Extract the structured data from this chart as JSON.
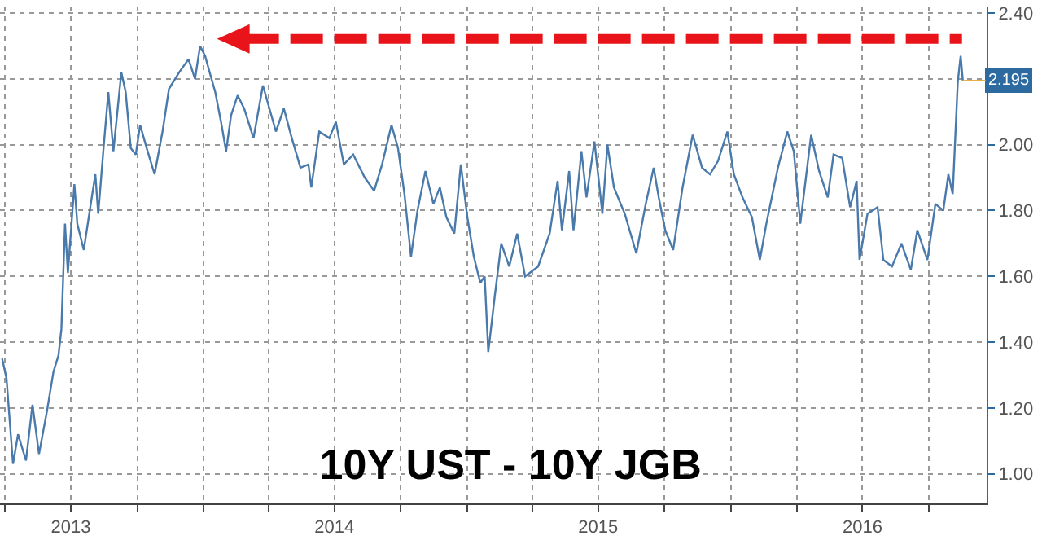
{
  "chart_data": {
    "type": "line",
    "title": "10Y UST - 10Y JGB",
    "x": [
      "2013-03-28",
      "2013-04-03",
      "2013-04-12",
      "2013-04-19",
      "2013-04-30",
      "2013-05-09",
      "2013-05-18",
      "2013-05-29",
      "2013-06-07",
      "2013-06-14",
      "2013-06-18",
      "2013-06-23",
      "2013-06-27",
      "2013-07-06",
      "2013-07-10",
      "2013-07-19",
      "2013-07-28",
      "2013-08-04",
      "2013-08-08",
      "2013-08-15",
      "2013-08-22",
      "2013-08-29",
      "2013-09-09",
      "2013-09-15",
      "2013-09-22",
      "2013-09-29",
      "2013-10-05",
      "2013-10-14",
      "2013-10-25",
      "2013-11-05",
      "2013-11-14",
      "2013-11-28",
      "2013-12-11",
      "2013-12-20",
      "2013-12-27",
      "2014-01-03",
      "2014-01-08",
      "2014-01-17",
      "2014-01-25",
      "2014-02-01",
      "2014-02-08",
      "2014-02-17",
      "2014-02-26",
      "2014-03-11",
      "2014-03-24",
      "2014-04-02",
      "2014-04-11",
      "2014-04-22",
      "2014-05-03",
      "2014-05-15",
      "2014-05-26",
      "2014-05-30",
      "2014-06-10",
      "2014-06-24",
      "2014-07-03",
      "2014-07-14",
      "2014-07-27",
      "2014-08-12",
      "2014-08-25",
      "2014-09-05",
      "2014-09-18",
      "2014-09-27",
      "2014-10-06",
      "2014-10-15",
      "2014-10-24",
      "2014-11-04",
      "2014-11-15",
      "2014-11-24",
      "2014-12-03",
      "2014-12-14",
      "2014-12-23",
      "2015-01-01",
      "2015-01-10",
      "2015-01-19",
      "2015-01-25",
      "2015-01-30",
      "2015-02-08",
      "2015-02-17",
      "2015-02-28",
      "2015-03-11",
      "2015-03-22",
      "2015-04-09",
      "2015-04-25",
      "2015-05-06",
      "2015-05-12",
      "2015-05-22",
      "2015-05-28",
      "2015-06-08",
      "2015-06-15",
      "2015-06-26",
      "2015-07-07",
      "2015-07-14",
      "2015-07-23",
      "2015-08-07",
      "2015-08-23",
      "2015-09-05",
      "2015-09-16",
      "2015-09-23",
      "2015-10-02",
      "2015-10-13",
      "2015-10-26",
      "2015-11-09",
      "2015-11-22",
      "2015-12-03",
      "2015-12-14",
      "2015-12-27",
      "2016-01-05",
      "2016-01-17",
      "2016-01-30",
      "2016-02-10",
      "2016-02-19",
      "2016-03-06",
      "2016-03-19",
      "2016-03-28",
      "2016-04-06",
      "2016-04-21",
      "2016-05-02",
      "2016-05-14",
      "2016-05-22",
      "2016-06-03",
      "2016-06-14",
      "2016-06-23",
      "2016-06-27",
      "2016-07-08",
      "2016-07-22",
      "2016-07-30",
      "2016-08-11",
      "2016-08-24",
      "2016-09-06",
      "2016-09-15",
      "2016-09-29",
      "2016-10-10",
      "2016-10-21",
      "2016-10-28",
      "2016-11-03",
      "2016-11-10",
      "2016-11-14",
      "2016-11-17"
    ],
    "series": [
      {
        "color": "#4a7aab",
        "values": [
          1.35,
          1.29,
          1.03,
          1.12,
          1.04,
          1.21,
          1.06,
          1.19,
          1.31,
          1.36,
          1.44,
          1.76,
          1.61,
          1.88,
          1.76,
          1.68,
          1.81,
          1.91,
          1.79,
          1.98,
          2.16,
          1.98,
          2.22,
          2.16,
          1.99,
          1.97,
          2.06,
          1.99,
          1.91,
          2.04,
          2.17,
          2.22,
          2.26,
          2.2,
          2.3,
          2.27,
          2.23,
          2.16,
          2.07,
          1.98,
          2.09,
          2.15,
          2.11,
          2.02,
          2.18,
          2.11,
          2.04,
          2.11,
          2.02,
          1.93,
          1.94,
          1.87,
          2.04,
          2.02,
          2.07,
          1.94,
          1.97,
          1.9,
          1.86,
          1.94,
          2.06,
          1.99,
          1.85,
          1.66,
          1.8,
          1.92,
          1.82,
          1.87,
          1.78,
          1.73,
          1.94,
          1.78,
          1.66,
          1.58,
          1.6,
          1.37,
          1.54,
          1.7,
          1.63,
          1.73,
          1.6,
          1.63,
          1.73,
          1.89,
          1.74,
          1.92,
          1.74,
          1.98,
          1.84,
          2.01,
          1.79,
          2.0,
          1.87,
          1.79,
          1.67,
          1.82,
          1.93,
          1.84,
          1.74,
          1.68,
          1.87,
          2.03,
          1.93,
          1.91,
          1.95,
          2.04,
          1.91,
          1.84,
          1.78,
          1.65,
          1.76,
          1.93,
          2.04,
          1.98,
          1.76,
          2.03,
          1.92,
          1.84,
          1.97,
          1.96,
          1.81,
          1.89,
          1.65,
          1.79,
          1.81,
          1.65,
          1.63,
          1.7,
          1.62,
          1.74,
          1.65,
          1.82,
          1.8,
          1.91,
          1.85,
          2.19,
          2.27,
          2.195
        ]
      }
    ],
    "xlim": [
      "2013-03-25",
      "2016-12-20"
    ],
    "xticks": [
      {
        "value": "2013-04-01",
        "label": null
      },
      {
        "value": "2013-07-01",
        "label": "2013"
      },
      {
        "value": "2013-10-01",
        "label": null
      },
      {
        "value": "2014-01-01",
        "label": null
      },
      {
        "value": "2014-04-01",
        "label": null
      },
      {
        "value": "2014-07-01",
        "label": "2014"
      },
      {
        "value": "2014-10-01",
        "label": null
      },
      {
        "value": "2015-01-01",
        "label": null
      },
      {
        "value": "2015-04-01",
        "label": null
      },
      {
        "value": "2015-07-01",
        "label": "2015"
      },
      {
        "value": "2015-10-01",
        "label": null
      },
      {
        "value": "2016-01-01",
        "label": null
      },
      {
        "value": "2016-04-01",
        "label": null
      },
      {
        "value": "2016-07-01",
        "label": "2016"
      },
      {
        "value": "2016-10-01",
        "label": null
      }
    ],
    "ylim": [
      0.91,
      2.42
    ],
    "yticks": [
      {
        "value": 1.0,
        "label": "1.00"
      },
      {
        "value": 1.2,
        "label": "1.20"
      },
      {
        "value": 1.4,
        "label": "1.40"
      },
      {
        "value": 1.6,
        "label": "1.60"
      },
      {
        "value": 1.8,
        "label": "1.80"
      },
      {
        "value": 2.0,
        "label": "2.00"
      },
      {
        "value": 2.2,
        "label": null
      },
      {
        "value": 2.4,
        "label": "2.40"
      }
    ],
    "annotations": [
      {
        "text": "2.195",
        "x": "2016-11-17",
        "y": 2.195
      }
    ],
    "grid": true,
    "marker": "none",
    "line_style": "solid"
  }
}
